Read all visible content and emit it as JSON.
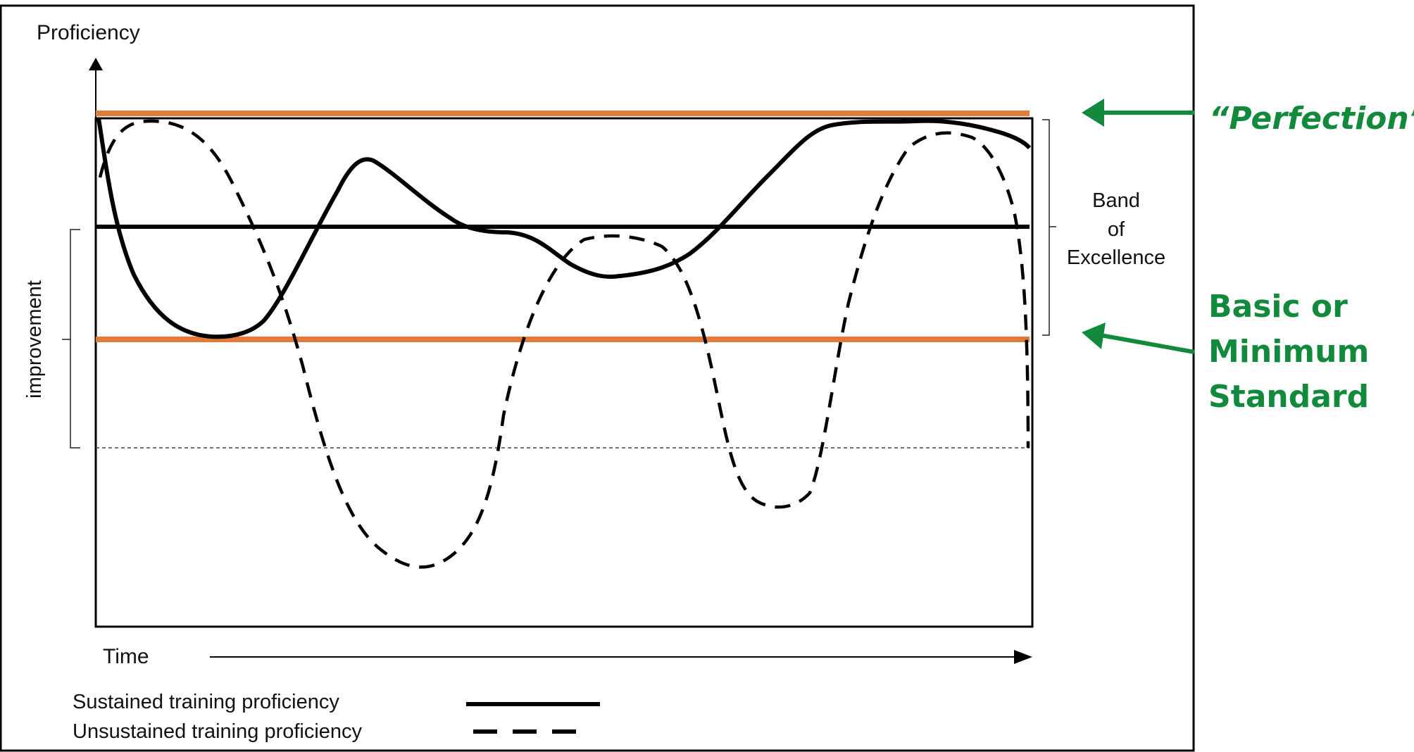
{
  "diagram": {
    "y_axis_label": "Proficiency",
    "x_axis_label": "Time",
    "band_label_lines": [
      "Band",
      "of",
      "Excellence"
    ],
    "improvement_label": "improvement",
    "legend": [
      {
        "label": "Sustained training proficiency",
        "style": "solid"
      },
      {
        "label": "Unsustained training proficiency",
        "style": "dashed"
      }
    ],
    "annotations": {
      "perfection": "“Perfection”",
      "minimum_lines": [
        "Basic or",
        "Minimum",
        "Standard"
      ]
    },
    "colors": {
      "standard_line": "#E07B39",
      "annotation": "#128A3C",
      "curve": "#000000",
      "frame": "#000000"
    }
  }
}
